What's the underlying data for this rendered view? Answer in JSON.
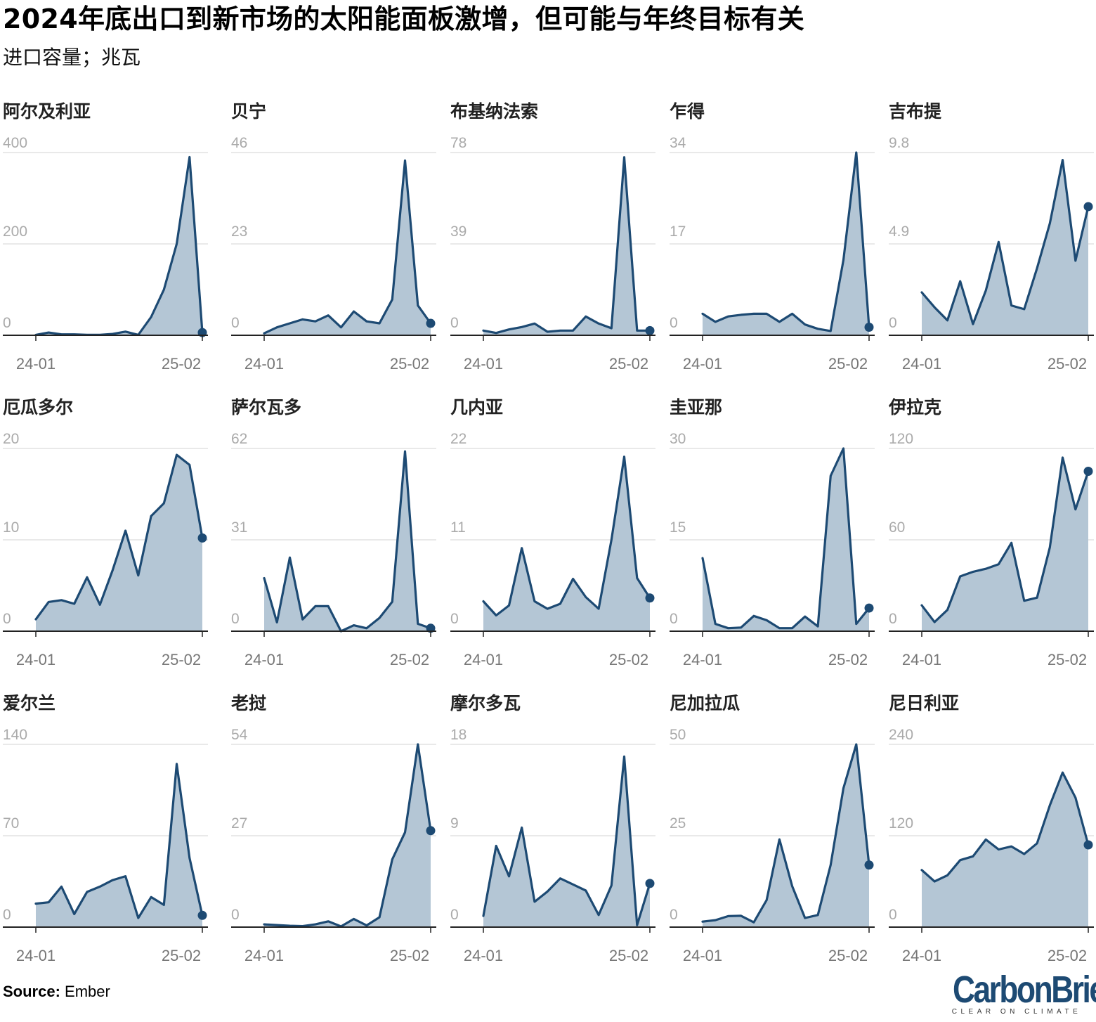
{
  "title": "2024年底出口到新市场的太阳能面板激增，但可能与年终目标有关",
  "subtitle": "进口容量；兆瓦",
  "source_label": "Source:",
  "source_value": "Ember",
  "logo": {
    "word": "CarbonBrief",
    "tagline": "CLEAR ON CLIMATE"
  },
  "colors": {
    "line": "#1d4a73",
    "area": "#b4c6d5",
    "grid": "#e2e2e2",
    "tick_text": "#aaaaaa",
    "axis": "#222222"
  },
  "chart_data": [
    {
      "type": "area",
      "title": "阿尔及利亚",
      "x_labels": [
        "24-01",
        "25-02"
      ],
      "y_ticks": [
        "0",
        "200",
        "400"
      ],
      "ylim": [
        0,
        400
      ],
      "values": [
        1,
        6,
        2,
        2,
        1,
        1,
        3,
        8,
        1,
        40,
        100,
        200,
        390,
        6
      ]
    },
    {
      "type": "area",
      "title": "贝宁",
      "x_labels": [
        "24-01",
        "25-02"
      ],
      "y_ticks": [
        "0",
        "23",
        "46"
      ],
      "ylim": [
        0,
        46
      ],
      "values": [
        0.5,
        2,
        3,
        4,
        3.5,
        5,
        2,
        6,
        3.5,
        3,
        9,
        44,
        7.5,
        3
      ]
    },
    {
      "type": "area",
      "title": "布基纳法索",
      "x_labels": [
        "24-01",
        "25-02"
      ],
      "y_ticks": [
        "0",
        "39",
        "78"
      ],
      "ylim": [
        0,
        78
      ],
      "values": [
        2,
        1,
        2.5,
        3.5,
        5,
        1.5,
        2,
        2,
        8,
        5,
        3,
        76,
        2,
        2
      ]
    },
    {
      "type": "area",
      "title": "乍得",
      "x_labels": [
        "24-01",
        "25-02"
      ],
      "y_ticks": [
        "0",
        "17",
        "34"
      ],
      "ylim": [
        0,
        34
      ],
      "values": [
        4,
        2.5,
        3.5,
        3.8,
        4,
        4,
        2.5,
        4,
        2,
        1.2,
        0.8,
        14,
        34,
        1.5
      ]
    },
    {
      "type": "area",
      "title": "吉布提",
      "x_labels": [
        "24-01",
        "25-02"
      ],
      "y_ticks": [
        "0",
        "4.9",
        "9.8"
      ],
      "ylim": [
        0,
        9.8
      ],
      "values": [
        2.3,
        1.5,
        0.8,
        2.9,
        0.6,
        2.4,
        5,
        1.6,
        1.4,
        3.6,
        6,
        9.4,
        4,
        6.9
      ]
    },
    {
      "type": "area",
      "title": "厄瓜多尔",
      "x_labels": [
        "24-01",
        "25-02"
      ],
      "y_ticks": [
        "0",
        "10",
        "20"
      ],
      "ylim": [
        0,
        20
      ],
      "values": [
        1.3,
        3.2,
        3.4,
        3,
        5.9,
        2.9,
        6.7,
        11,
        6.1,
        12.6,
        14,
        19.3,
        18.2,
        10.2
      ]
    },
    {
      "type": "area",
      "title": "萨尔瓦多",
      "x_labels": [
        "24-01",
        "25-02"
      ],
      "y_ticks": [
        "0",
        "31",
        "62"
      ],
      "ylim": [
        0,
        62
      ],
      "values": [
        18,
        3,
        25,
        4,
        8.5,
        8.5,
        0,
        2,
        1,
        4.5,
        10,
        61,
        2.5,
        1
      ]
    },
    {
      "type": "area",
      "title": "几内亚",
      "x_labels": [
        "24-01",
        "25-02"
      ],
      "y_ticks": [
        "0",
        "11",
        "22"
      ],
      "ylim": [
        0,
        22
      ],
      "values": [
        3.6,
        1.9,
        3.1,
        10,
        3.6,
        2.7,
        3.3,
        6.3,
        4.1,
        2.7,
        11,
        21,
        6.4,
        4
      ]
    },
    {
      "type": "area",
      "title": "圭亚那",
      "x_labels": [
        "24-01",
        "25-02"
      ],
      "y_ticks": [
        "0",
        "15",
        "30"
      ],
      "ylim": [
        0,
        30
      ],
      "values": [
        12,
        1.2,
        0.5,
        0.6,
        2.5,
        1.8,
        0.5,
        0.5,
        2.4,
        0.8,
        25.5,
        30,
        1.2,
        3.8
      ]
    },
    {
      "type": "area",
      "title": "伊拉克",
      "x_labels": [
        "24-01",
        "25-02"
      ],
      "y_ticks": [
        "0",
        "60",
        "120"
      ],
      "ylim": [
        0,
        120
      ],
      "values": [
        17,
        6,
        14,
        36,
        39,
        41,
        44,
        58,
        20,
        22,
        55,
        114,
        80,
        105
      ]
    },
    {
      "type": "area",
      "title": "爱尔兰",
      "x_labels": [
        "24-01",
        "25-02"
      ],
      "y_ticks": [
        "0",
        "70",
        "140"
      ],
      "ylim": [
        0,
        140
      ],
      "values": [
        18,
        19,
        31,
        10,
        27,
        31,
        36,
        39,
        7,
        23,
        17,
        125,
        53,
        9
      ]
    },
    {
      "type": "area",
      "title": "老挝",
      "x_labels": [
        "24-01",
        "25-02"
      ],
      "y_ticks": [
        "0",
        "27",
        "54"
      ],
      "ylim": [
        0,
        54
      ],
      "values": [
        0.8,
        0.6,
        0.4,
        0.3,
        0.8,
        1.7,
        0.2,
        2.4,
        0.5,
        2.9,
        20,
        28,
        54,
        28.5
      ]
    },
    {
      "type": "area",
      "title": "摩尔多瓦",
      "x_labels": [
        "24-01",
        "25-02"
      ],
      "y_ticks": [
        "0",
        "9",
        "18"
      ],
      "ylim": [
        0,
        18
      ],
      "values": [
        1.1,
        8,
        5,
        9.8,
        2.5,
        3.5,
        4.8,
        4.2,
        3.6,
        1.2,
        4.1,
        16.8,
        0.2,
        4.3
      ]
    },
    {
      "type": "area",
      "title": "尼加拉瓜",
      "x_labels": [
        "24-01",
        "25-02"
      ],
      "y_ticks": [
        "0",
        "25",
        "50"
      ],
      "ylim": [
        0,
        50
      ],
      "values": [
        1.5,
        1.9,
        3,
        3.1,
        1.3,
        7.4,
        24,
        11.2,
        2.5,
        3.3,
        17,
        38,
        50,
        17
      ]
    },
    {
      "type": "area",
      "title": "尼日利亚",
      "x_labels": [
        "24-01",
        "25-02"
      ],
      "y_ticks": [
        "0",
        "120",
        "240"
      ],
      "ylim": [
        0,
        240
      ],
      "values": [
        75,
        60,
        68,
        88,
        93,
        115,
        102,
        106,
        96,
        110,
        160,
        203,
        170,
        108
      ]
    }
  ]
}
